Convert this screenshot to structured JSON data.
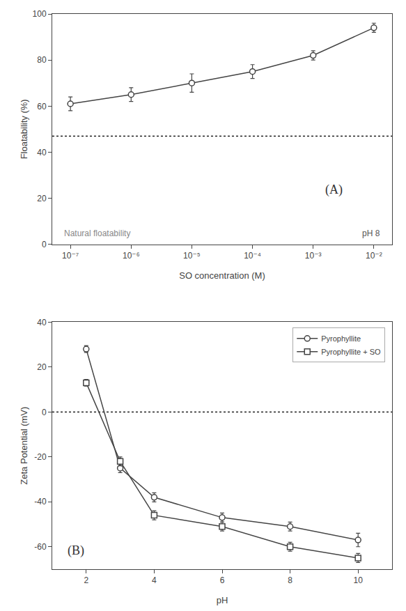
{
  "chart_data": [
    {
      "type": "line",
      "x": [
        1e-07,
        1e-06,
        1e-05,
        0.0001,
        0.001,
        0.01
      ],
      "values": [
        61,
        65,
        70,
        75,
        82,
        94
      ],
      "yerr": [
        3,
        3,
        4,
        3,
        2,
        2
      ],
      "color": "#444444",
      "marker": "circle",
      "xlabel": "SO concentration (M)",
      "ylabel": "Floatability (%)",
      "log": "x",
      "xlim": [
        5.011872336272715e-08,
        0.01995262314968879
      ],
      "xticks": [
        {
          "value": 1e-07,
          "label": "10⁻⁷"
        },
        {
          "value": 1e-06,
          "label": "10⁻⁶"
        },
        {
          "value": 1e-05,
          "label": "10⁻⁵"
        },
        {
          "value": 0.0001,
          "label": "10⁻⁴"
        },
        {
          "value": 0.001,
          "label": "10⁻³"
        },
        {
          "value": 0.01,
          "label": "10⁻²"
        }
      ],
      "ylim": [
        0,
        100
      ],
      "yticks": [
        0,
        20,
        40,
        60,
        80,
        100
      ],
      "grid": false,
      "hline": 47,
      "annotations": [
        "Natural floatability",
        "pH 8",
        "(A)"
      ]
    },
    {
      "type": "line",
      "x": [
        2,
        3,
        4,
        6,
        8,
        10
      ],
      "series": [
        {
          "name": "Pyrophyllite",
          "color": "#444444",
          "marker": "circle",
          "values": [
            28,
            -25,
            -38,
            -47,
            -51,
            -57
          ],
          "yerr": [
            1.5,
            2,
            2,
            2,
            2,
            3
          ]
        },
        {
          "name": "Pyrophyllite + SO",
          "color": "#444444",
          "marker": "square",
          "values": [
            13,
            -22,
            -46,
            -51,
            -60,
            -65
          ],
          "yerr": [
            1.5,
            2,
            2,
            2,
            2,
            2
          ]
        }
      ],
      "xlabel": "pH",
      "ylabel": "Zeta Potential (mV)",
      "xlim": [
        1,
        11
      ],
      "xticks": [
        2,
        4,
        6,
        8,
        10
      ],
      "ylim": [
        -70,
        40
      ],
      "yticks": [
        -60,
        -40,
        -20,
        0,
        20,
        40
      ],
      "grid": false,
      "legend": "upper right",
      "hline": 0,
      "annotations": [
        "(B)"
      ]
    }
  ]
}
